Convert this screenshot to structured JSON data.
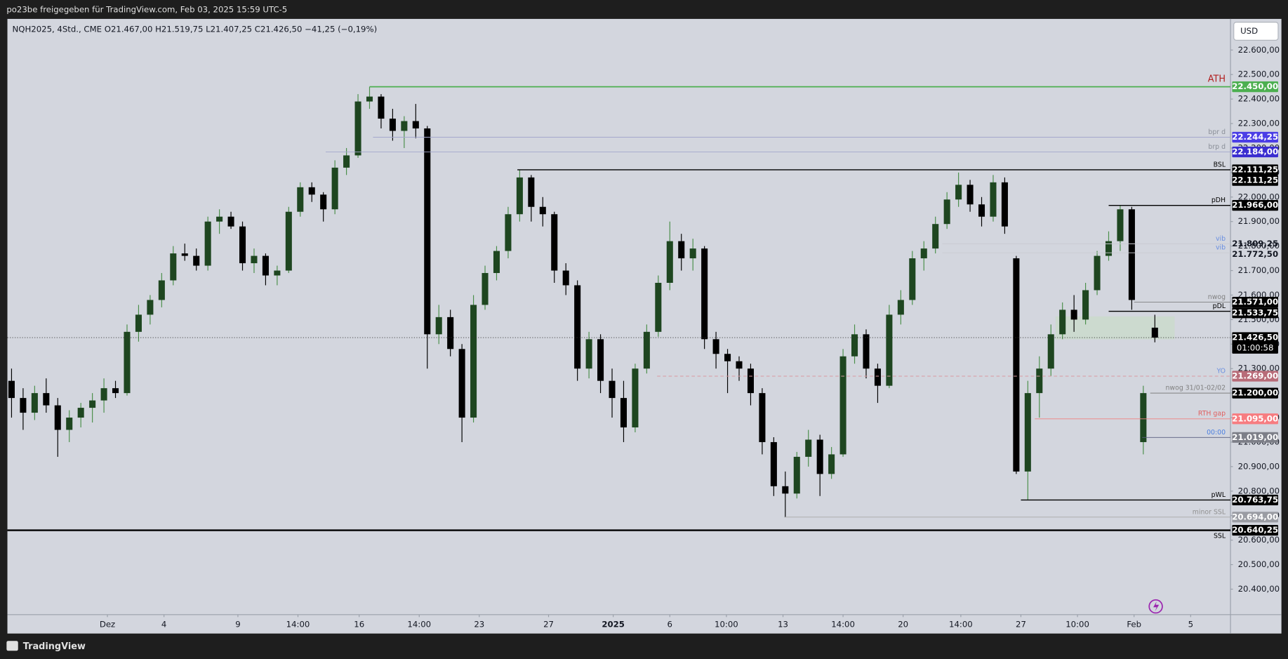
{
  "top_bar": "po23be freigegeben für TradingView.com, Feb 03, 2025 15:59 UTC-5",
  "brand": "TradingView",
  "chart_data": {
    "type": "candlestick",
    "symbol_info": "NQH2025, 4Std., CME  O21.467,00  H21.519,75  L21.407,25  C21.426,50  −41,25 (−0,19%)",
    "currency": "USD",
    "up_color": "#1e4620",
    "up_wick": "#4a8f4a",
    "down_color": "#000000",
    "xlim": [
      -0.36,
      105.55
    ],
    "xticks": [
      {
        "value": 8.3,
        "label": "Dez"
      },
      {
        "value": 13.2,
        "label": "4"
      },
      {
        "value": 19.6,
        "label": "9"
      },
      {
        "value": 24.8,
        "label": "14:00"
      },
      {
        "value": 30.1,
        "label": "16"
      },
      {
        "value": 35.3,
        "label": "14:00"
      },
      {
        "value": 40.5,
        "label": "23"
      },
      {
        "value": 46.5,
        "label": "27"
      },
      {
        "value": 52.1,
        "label": "2025"
      },
      {
        "value": 57,
        "label": "6"
      },
      {
        "value": 61.9,
        "label": "10:00"
      },
      {
        "value": 66.8,
        "label": "13"
      },
      {
        "value": 72,
        "label": "14:00"
      },
      {
        "value": 77.2,
        "label": "20"
      },
      {
        "value": 82.2,
        "label": "14:00"
      },
      {
        "value": 87.4,
        "label": "27"
      },
      {
        "value": 92.3,
        "label": "10:00"
      },
      {
        "value": 97.2,
        "label": "Feb"
      },
      {
        "value": 102.1,
        "label": "5"
      }
    ],
    "ylim": [
      20296,
      22727
    ],
    "yticks": [
      {
        "value": 22600,
        "label": "22.600,00"
      },
      {
        "value": 22500,
        "label": "22.500,00"
      },
      {
        "value": 22400,
        "label": "22.400,00"
      },
      {
        "value": 22300,
        "label": "22.300,00"
      },
      {
        "value": 22200,
        "label": "22.200,00"
      },
      {
        "value": 22100,
        "label": "22.100,00"
      },
      {
        "value": 22000,
        "label": "22.000,00"
      },
      {
        "value": 21900,
        "label": "21.900,00"
      },
      {
        "value": 21800,
        "label": "21.800,00"
      },
      {
        "value": 21700,
        "label": "21.700,00"
      },
      {
        "value": 21600,
        "label": "21.600,00"
      },
      {
        "value": 21500,
        "label": "21.500,00"
      },
      {
        "value": 21400,
        "label": "21.400,00"
      },
      {
        "value": 21300,
        "label": "21.300,00"
      },
      {
        "value": 21200,
        "label": "21.200,00"
      },
      {
        "value": 21100,
        "label": "21.100,00"
      },
      {
        "value": 21000,
        "label": "21.000,00"
      },
      {
        "value": 20900,
        "label": "20.900,00"
      },
      {
        "value": 20800,
        "label": "20.800,00"
      },
      {
        "value": 20700,
        "label": "20.700,00"
      },
      {
        "value": 20600,
        "label": "20.600,00"
      },
      {
        "value": 20500,
        "label": "20.500,00"
      },
      {
        "value": 20400,
        "label": "20.400,00"
      }
    ],
    "ohlc": [
      [
        21250,
        21300,
        21100,
        21180
      ],
      [
        21180,
        21220,
        21050,
        21120
      ],
      [
        21120,
        21230,
        21090,
        21200
      ],
      [
        21200,
        21260,
        21120,
        21150
      ],
      [
        21150,
        21180,
        20940,
        21050
      ],
      [
        21050,
        21130,
        21000,
        21100
      ],
      [
        21100,
        21160,
        21060,
        21140
      ],
      [
        21140,
        21200,
        21080,
        21170
      ],
      [
        21170,
        21260,
        21120,
        21220
      ],
      [
        21220,
        21250,
        21180,
        21200
      ],
      [
        21200,
        21480,
        21190,
        21450
      ],
      [
        21450,
        21560,
        21410,
        21520
      ],
      [
        21520,
        21600,
        21480,
        21580
      ],
      [
        21580,
        21690,
        21550,
        21660
      ],
      [
        21660,
        21800,
        21640,
        21770
      ],
      [
        21770,
        21810,
        21740,
        21760
      ],
      [
        21760,
        21790,
        21700,
        21720
      ],
      [
        21720,
        21920,
        21700,
        21900
      ],
      [
        21900,
        21950,
        21850,
        21920
      ],
      [
        21920,
        21940,
        21870,
        21880
      ],
      [
        21880,
        21900,
        21700,
        21730
      ],
      [
        21730,
        21790,
        21690,
        21760
      ],
      [
        21760,
        21770,
        21640,
        21680
      ],
      [
        21680,
        21720,
        21640,
        21700
      ],
      [
        21700,
        21960,
        21690,
        21940
      ],
      [
        21940,
        22060,
        21920,
        22040
      ],
      [
        22040,
        22060,
        21980,
        22010
      ],
      [
        22010,
        22020,
        21900,
        21950
      ],
      [
        21950,
        22150,
        21930,
        22120
      ],
      [
        22120,
        22200,
        22090,
        22170
      ],
      [
        22170,
        22420,
        22160,
        22390
      ],
      [
        22390,
        22450,
        22360,
        22410
      ],
      [
        22410,
        22420,
        22280,
        22320
      ],
      [
        22320,
        22360,
        22230,
        22270
      ],
      [
        22270,
        22330,
        22200,
        22310
      ],
      [
        22310,
        22380,
        22240,
        22280
      ],
      [
        22280,
        22290,
        21300,
        21440
      ],
      [
        21440,
        21560,
        21400,
        21510
      ],
      [
        21510,
        21540,
        21350,
        21380
      ],
      [
        21380,
        21400,
        21000,
        21100
      ],
      [
        21100,
        21600,
        21080,
        21560
      ],
      [
        21560,
        21720,
        21540,
        21690
      ],
      [
        21690,
        21800,
        21660,
        21780
      ],
      [
        21780,
        21960,
        21750,
        21930
      ],
      [
        21930,
        22111,
        21900,
        22080
      ],
      [
        22080,
        22090,
        21900,
        21960
      ],
      [
        21960,
        22000,
        21880,
        21930
      ],
      [
        21930,
        21940,
        21650,
        21700
      ],
      [
        21700,
        21730,
        21600,
        21640
      ],
      [
        21640,
        21660,
        21250,
        21300
      ],
      [
        21300,
        21450,
        21260,
        21420
      ],
      [
        21420,
        21440,
        21200,
        21250
      ],
      [
        21250,
        21300,
        21100,
        21180
      ],
      [
        21180,
        21250,
        21000,
        21060
      ],
      [
        21060,
        21320,
        21040,
        21300
      ],
      [
        21300,
        21480,
        21280,
        21450
      ],
      [
        21450,
        21680,
        21430,
        21650
      ],
      [
        21650,
        21900,
        21620,
        21820
      ],
      [
        21820,
        21850,
        21700,
        21750
      ],
      [
        21750,
        21830,
        21700,
        21790
      ],
      [
        21790,
        21800,
        21380,
        21420
      ],
      [
        21420,
        21450,
        21300,
        21360
      ],
      [
        21360,
        21380,
        21200,
        21330
      ],
      [
        21330,
        21350,
        21250,
        21300
      ],
      [
        21300,
        21320,
        21150,
        21200
      ],
      [
        21200,
        21220,
        20950,
        21000
      ],
      [
        21000,
        21020,
        20780,
        20820
      ],
      [
        20820,
        20880,
        20694,
        20790
      ],
      [
        20790,
        20960,
        20770,
        20940
      ],
      [
        20940,
        21050,
        20900,
        21010
      ],
      [
        21010,
        21030,
        20780,
        20870
      ],
      [
        20870,
        20980,
        20850,
        20950
      ],
      [
        20950,
        21380,
        20940,
        21350
      ],
      [
        21350,
        21480,
        21320,
        21440
      ],
      [
        21440,
        21460,
        21260,
        21300
      ],
      [
        21300,
        21320,
        21160,
        21230
      ],
      [
        21230,
        21560,
        21220,
        21520
      ],
      [
        21520,
        21620,
        21480,
        21580
      ],
      [
        21580,
        21780,
        21560,
        21750
      ],
      [
        21750,
        21820,
        21700,
        21790
      ],
      [
        21790,
        21920,
        21770,
        21890
      ],
      [
        21890,
        22020,
        21870,
        21990
      ],
      [
        21990,
        22100,
        21960,
        22050
      ],
      [
        22050,
        22070,
        21940,
        21970
      ],
      [
        21970,
        22000,
        21880,
        21920
      ],
      [
        21920,
        22090,
        21900,
        22060
      ],
      [
        22060,
        22080,
        21850,
        21880
      ],
      [
        21750,
        21760,
        20870,
        20880
      ],
      [
        20880,
        21250,
        20763,
        21200
      ],
      [
        21200,
        21350,
        21100,
        21300
      ],
      [
        21300,
        21480,
        21270,
        21440
      ],
      [
        21440,
        21570,
        21420,
        21540
      ],
      [
        21540,
        21600,
        21450,
        21500
      ],
      [
        21500,
        21650,
        21480,
        21620
      ],
      [
        21620,
        21780,
        21600,
        21760
      ],
      [
        21760,
        21860,
        21740,
        21820
      ],
      [
        21820,
        21966,
        21780,
        21950
      ],
      [
        21950,
        21960,
        21540,
        21580
      ],
      [
        21000,
        21230,
        20950,
        21200
      ],
      [
        21467,
        21519.75,
        21407.25,
        21426.5
      ]
    ],
    "levels": [
      {
        "name": "ATH",
        "value": 22450,
        "value_label": "22.450,00",
        "from": 31,
        "color": "#4caf50",
        "width": 1.5,
        "style": "solid",
        "text_color": "#b22222",
        "badge": "#4caf50"
      },
      {
        "name": "bpr d",
        "value": 22244.25,
        "value_label": "22.244,25",
        "from": 31.3,
        "color": "#a4a8cc",
        "width": 0.8,
        "style": "solid",
        "text_color": "#8a8f98",
        "badge": "#4b3ee6"
      },
      {
        "name": "brp d",
        "value": 22184,
        "value_label": "22.184,00",
        "from": 27.2,
        "color": "#a4a8cc",
        "width": 0.8,
        "style": "solid",
        "text_color": "#8a8f98",
        "badge": "#3b2ed0"
      },
      {
        "value": 22111.25,
        "value_label": "22.111,25",
        "badge": "#000000"
      },
      {
        "name": "BSL",
        "value": 22111.25,
        "value_label": "22.111,25",
        "from": 43.8,
        "color": "#000000",
        "width": 1.2,
        "style": "solid",
        "text_color": "#000000",
        "badge": "#000000"
      },
      {
        "name": "pDH",
        "value": 21966,
        "value_label": "21.966,00",
        "from": 95,
        "color": "#000000",
        "width": 1.2,
        "style": "solid",
        "text_color": "#000000",
        "badge": "#000000"
      },
      {
        "name": "vib",
        "value": 21809.25,
        "value_label": "21.809,25",
        "from": 80.6,
        "color": "#c9cbd2",
        "width": 0.8,
        "style": "solid",
        "text_color": "#6a8fe0"
      },
      {
        "name": "vib",
        "value": 21772.5,
        "value_label": "21.772,50",
        "from": 80.6,
        "color": "#c9cbd2",
        "width": 0.8,
        "style": "solid",
        "text_color": "#6a8fe0"
      },
      {
        "name": "nwog",
        "value": 21571,
        "value_label": "21.571,00",
        "from": 97.2,
        "color": "#808080",
        "width": 0.8,
        "style": "solid",
        "text_color": "#808080",
        "badge": "#000000"
      },
      {
        "name": "pDL",
        "value": 21533.75,
        "value_label": "21.533,75",
        "from": 95,
        "color": "#000000",
        "width": 1.2,
        "style": "solid",
        "text_color": "#000000",
        "badge": "#000000"
      },
      {
        "value": 21426.5,
        "value_label": "21.426,50",
        "countdown": "01:00:58",
        "from": -0.36,
        "color": "#333333",
        "width": 0.8,
        "style": "dotted",
        "badge": "#000000"
      },
      {
        "name": "YO",
        "value": 21269,
        "value_label": "21.269,00",
        "from": 55.9,
        "color": "#d89aa0",
        "width": 0.8,
        "style": "dashed",
        "text_color": "#6a8fe0",
        "badge": "#b86b78"
      },
      {
        "name": "nwog 31/01-02/02",
        "value": 21200,
        "value_label": "21.200,00",
        "from": 98.6,
        "color": "#808080",
        "width": 0.8,
        "style": "solid",
        "text_color": "#808080",
        "badge": "#000000"
      },
      {
        "name": "RTH gap",
        "value": 21095,
        "value_label": "21.095,00",
        "from": 88.6,
        "color": "#f08080",
        "width": 0.8,
        "style": "solid",
        "text_color": "#e06060",
        "badge": "#f77c80"
      },
      {
        "name": "00:00",
        "value": 21019,
        "value_label": "21.019,00",
        "from": 97.9,
        "color": "#5a5f80",
        "width": 0.8,
        "style": "solid",
        "text_color": "#4a7fe0",
        "badge": "#7d7f88"
      },
      {
        "name": "pWL",
        "value": 20763.75,
        "value_label": "20.763,75",
        "from": 87.4,
        "color": "#000000",
        "width": 1.2,
        "style": "solid",
        "text_color": "#000000",
        "badge": "#000000"
      },
      {
        "name": "minor SSL",
        "value": 20694,
        "value_label": "20.694,00",
        "from": 66.9,
        "color": "#a8a8a8",
        "width": 0.8,
        "style": "solid",
        "text_color": "#909090",
        "badge": "#9a9ca3"
      },
      {
        "name": "SSL",
        "value": 20640.25,
        "value_label": "20.640,25",
        "from": -0.36,
        "color": "#000000",
        "width": 2,
        "style": "solid",
        "text_color": "#000000",
        "badge": "#000000",
        "text_below": true
      }
    ]
  }
}
